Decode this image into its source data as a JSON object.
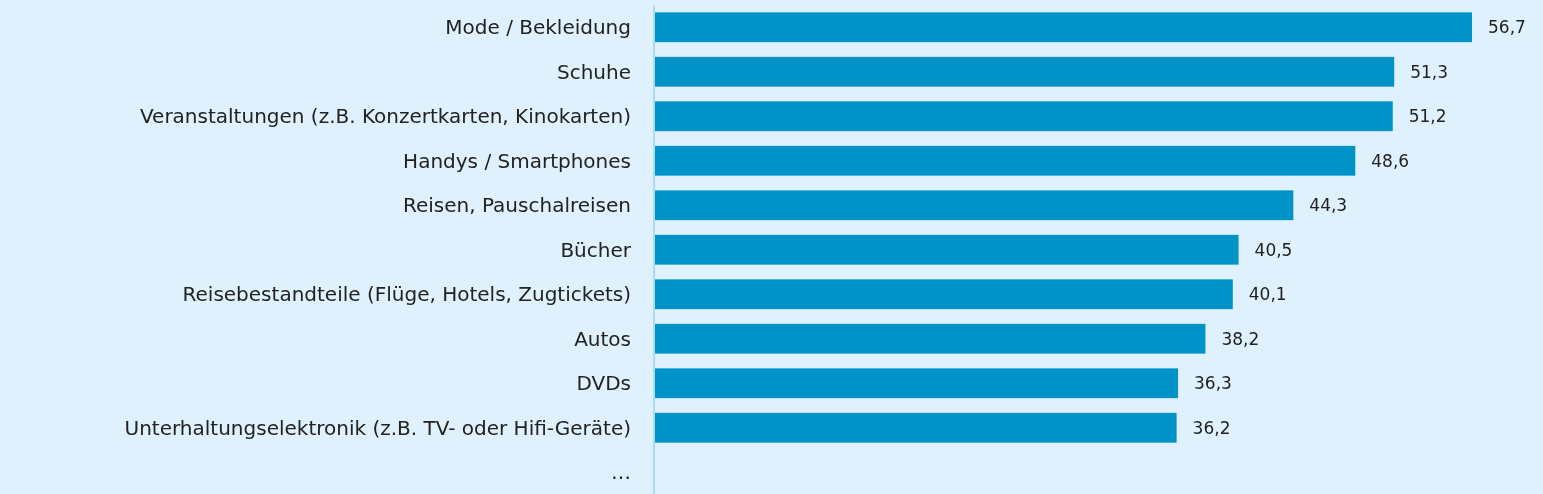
{
  "chart_data": {
    "type": "bar",
    "orientation": "horizontal",
    "value_labels": [
      "56,7",
      "51,3",
      "51,2",
      "48,6",
      "44,3",
      "40,5",
      "40,1",
      "38,2",
      "36,3",
      "36,2",
      null
    ],
    "color": "#0093c8",
    "categories": [
      "Mode / Bekleidung",
      "Schuhe",
      "Veranstaltungen (z.B. Konzertkarten, Kinokarten)",
      "Handys / Smartphones",
      "Reisen, Pauschalreisen",
      "Bücher",
      "Reisebestandteile (Flüge, Hotels, Zugtickets)",
      "Autos",
      "DVDs",
      "Unterhaltungselektronik (z.B. TV- oder Hifi-Geräte)",
      "…"
    ],
    "values": [
      56.7,
      51.3,
      51.2,
      48.6,
      44.3,
      40.5,
      40.1,
      38.2,
      36.3,
      36.2,
      null
    ]
  }
}
